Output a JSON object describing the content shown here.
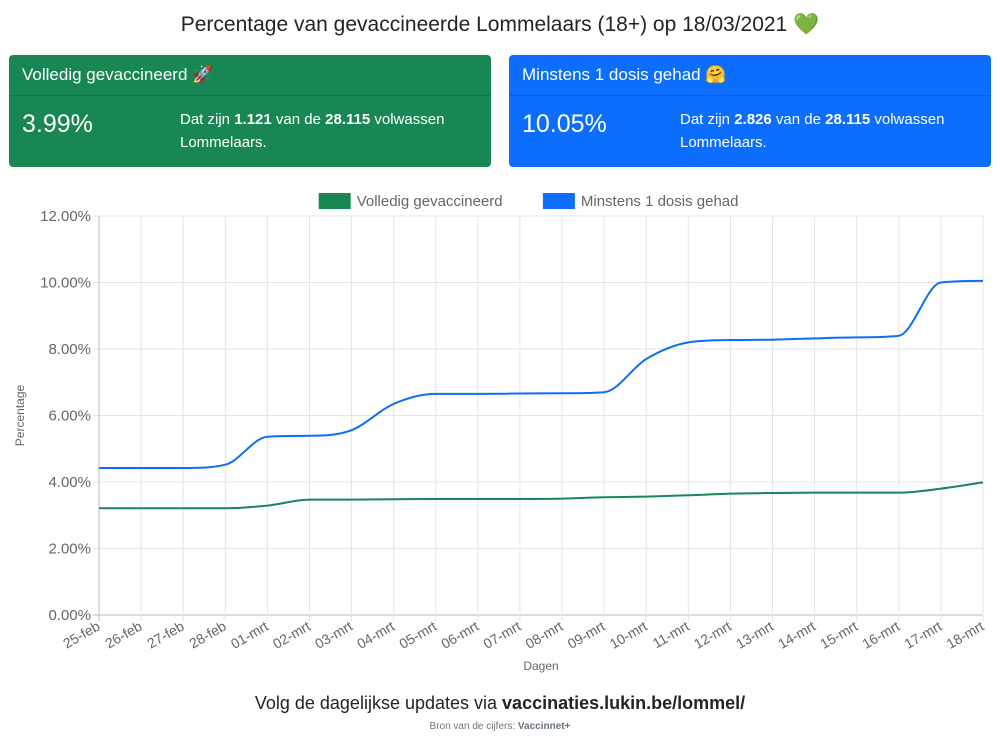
{
  "title": {
    "text": "Percentage van gevaccineerde Lommelaars (18+) op 18/03/2021",
    "icon": "green-heart-icon",
    "icon_glyph": "💚"
  },
  "cards": [
    {
      "header": "Volledig gevaccineerd",
      "header_icon": "rocket-icon",
      "header_glyph": "🚀",
      "percentage": "3.99%",
      "text_prefix": "Dat zijn",
      "count": "1.121",
      "text_middle": "van de",
      "total": "28.115",
      "text_suffix": "volwassen Lommelaars.",
      "color": "#198754"
    },
    {
      "header": "Minstens 1 dosis gehad",
      "header_icon": "hugging-face-icon",
      "header_glyph": "🤗",
      "percentage": "10.05%",
      "text_prefix": "Dat zijn",
      "count": "2.826",
      "text_middle": "van de",
      "total": "28.115",
      "text_suffix": "volwassen Lommelaars.",
      "color": "#0d6efd"
    }
  ],
  "chart_data": {
    "type": "line",
    "xlabel": "Dagen",
    "ylabel": "Percentage",
    "ylim": [
      0,
      12
    ],
    "y_ticks": [
      "0.00%",
      "2.00%",
      "4.00%",
      "6.00%",
      "8.00%",
      "10.00%",
      "12.00%"
    ],
    "grid": true,
    "legend": "top",
    "categories": [
      "25-feb",
      "26-feb",
      "27-feb",
      "28-feb",
      "01-mrt",
      "02-mrt",
      "03-mrt",
      "04-mrt",
      "05-mrt",
      "06-mrt",
      "07-mrt",
      "08-mrt",
      "09-mrt",
      "10-mrt",
      "11-mrt",
      "12-mrt",
      "13-mrt",
      "14-mrt",
      "15-mrt",
      "16-mrt",
      "17-mrt",
      "18-mrt"
    ],
    "series": [
      {
        "name": "Volledig gevaccineerd",
        "color": "#198754",
        "values": [
          3.21,
          3.21,
          3.21,
          3.21,
          3.29,
          3.47,
          3.47,
          3.48,
          3.49,
          3.49,
          3.49,
          3.5,
          3.54,
          3.56,
          3.6,
          3.65,
          3.67,
          3.68,
          3.68,
          3.68,
          3.8,
          3.99
        ]
      },
      {
        "name": "Minstens 1 dosis gehad",
        "color": "#0d6efd",
        "values": [
          4.42,
          4.42,
          4.42,
          4.52,
          5.36,
          5.39,
          5.56,
          6.35,
          6.65,
          6.65,
          6.66,
          6.67,
          6.7,
          7.7,
          8.2,
          8.27,
          8.28,
          8.32,
          8.35,
          8.4,
          10.0,
          10.05
        ]
      }
    ]
  },
  "footer": {
    "prefix": "Volg de dagelijkse updates via",
    "link": "vaccinaties.lukin.be/lommel/"
  },
  "source": {
    "prefix": "Bron van de cijfers:",
    "name": "Vaccinnet+"
  }
}
